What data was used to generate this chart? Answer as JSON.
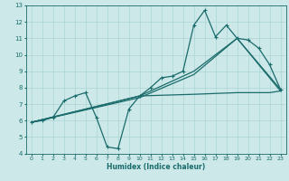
{
  "xlabel": "Humidex (Indice chaleur)",
  "xlim": [
    -0.5,
    23.5
  ],
  "ylim": [
    4,
    13
  ],
  "xticks": [
    0,
    1,
    2,
    3,
    4,
    5,
    6,
    7,
    8,
    9,
    10,
    11,
    12,
    13,
    14,
    15,
    16,
    17,
    18,
    19,
    20,
    21,
    22,
    23
  ],
  "yticks": [
    4,
    5,
    6,
    7,
    8,
    9,
    10,
    11,
    12,
    13
  ],
  "background_color": "#cce8e8",
  "grid_color": "#aad4d4",
  "line_color": "#1a6b6b",
  "line1_x": [
    0,
    1,
    2,
    3,
    4,
    5,
    6,
    7,
    8,
    9,
    10,
    11,
    12,
    13,
    14,
    15,
    16,
    17,
    18,
    19,
    20,
    21,
    22,
    23
  ],
  "line1_y": [
    5.9,
    6.0,
    6.2,
    7.2,
    7.5,
    7.7,
    6.2,
    4.4,
    4.3,
    6.7,
    7.5,
    8.0,
    8.6,
    8.7,
    9.0,
    11.8,
    12.7,
    11.1,
    11.8,
    11.0,
    10.9,
    10.4,
    9.4,
    7.9
  ],
  "line2_x": [
    0,
    10,
    15,
    19,
    23
  ],
  "line2_y": [
    5.9,
    7.5,
    9.0,
    11.0,
    7.9
  ],
  "line3_x": [
    0,
    10,
    15,
    19,
    23
  ],
  "line3_y": [
    5.9,
    7.4,
    8.8,
    11.0,
    7.8
  ],
  "flat_line_x": [
    0,
    10,
    15,
    19,
    20,
    21,
    22,
    23
  ],
  "flat_line_y": [
    5.9,
    7.5,
    7.6,
    7.7,
    7.7,
    7.7,
    7.7,
    7.8
  ]
}
